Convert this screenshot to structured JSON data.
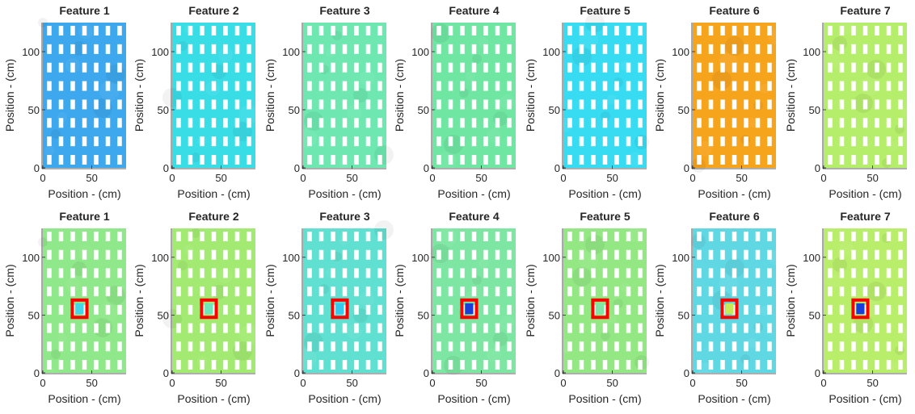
{
  "chart_data": [
    {
      "type": "heatmap",
      "row": "top",
      "title": "Feature 1",
      "xlabel": "Position - (cm)",
      "ylabel": "Position - (cm)",
      "x_ticks": [
        0,
        50
      ],
      "y_ticks": [
        0,
        50,
        100
      ],
      "xlim": [
        0,
        85
      ],
      "ylim": [
        0,
        125
      ],
      "base_color": "#3ea8ee",
      "highlight": null
    },
    {
      "type": "heatmap",
      "row": "top",
      "title": "Feature 2",
      "xlabel": "Position - (cm)",
      "ylabel": "Position - (cm)",
      "x_ticks": [
        0,
        50
      ],
      "y_ticks": [
        0,
        50,
        100
      ],
      "xlim": [
        0,
        85
      ],
      "ylim": [
        0,
        125
      ],
      "base_color": "#39dde6",
      "highlight": null
    },
    {
      "type": "heatmap",
      "row": "top",
      "title": "Feature 3",
      "xlabel": "Position - (cm)",
      "ylabel": "Position - (cm)",
      "x_ticks": [
        0,
        50
      ],
      "y_ticks": [
        0,
        50,
        100
      ],
      "xlim": [
        0,
        85
      ],
      "ylim": [
        0,
        125
      ],
      "base_color": "#6ee8b0",
      "highlight": null
    },
    {
      "type": "heatmap",
      "row": "top",
      "title": "Feature 4",
      "xlabel": "Position - (cm)",
      "ylabel": "Position - (cm)",
      "x_ticks": [
        0,
        50
      ],
      "y_ticks": [
        0,
        50,
        100
      ],
      "xlim": [
        0,
        85
      ],
      "ylim": [
        0,
        125
      ],
      "base_color": "#6fe6a2",
      "highlight": null
    },
    {
      "type": "heatmap",
      "row": "top",
      "title": "Feature 5",
      "xlabel": "Position - (cm)",
      "ylabel": "Position - (cm)",
      "x_ticks": [
        0,
        50
      ],
      "y_ticks": [
        0,
        50,
        100
      ],
      "xlim": [
        0,
        85
      ],
      "ylim": [
        0,
        125
      ],
      "base_color": "#37dcf2",
      "highlight": null
    },
    {
      "type": "heatmap",
      "row": "top",
      "title": "Feature 6",
      "xlabel": "Position - (cm)",
      "ylabel": "Position - (cm)",
      "x_ticks": [
        0,
        50
      ],
      "y_ticks": [
        0,
        50,
        100
      ],
      "xlim": [
        0,
        85
      ],
      "ylim": [
        0,
        125
      ],
      "base_color": "#f7a41d",
      "highlight": null
    },
    {
      "type": "heatmap",
      "row": "top",
      "title": "Feature 7",
      "xlabel": "Position - (cm)",
      "ylabel": "Position - (cm)",
      "x_ticks": [
        0,
        50
      ],
      "y_ticks": [
        0,
        50,
        100
      ],
      "xlim": [
        0,
        85
      ],
      "ylim": [
        0,
        125
      ],
      "base_color": "#b5ee6a",
      "highlight": null
    },
    {
      "type": "heatmap",
      "row": "bottom",
      "title": "Feature 1",
      "xlabel": "Position - (cm)",
      "ylabel": "Position - (cm)",
      "x_ticks": [
        0,
        50
      ],
      "y_ticks": [
        0,
        50,
        100
      ],
      "xlim": [
        0,
        85
      ],
      "ylim": [
        0,
        125
      ],
      "base_color": "#8fe889",
      "highlight": {
        "x": [
          30,
          45
        ],
        "y": [
          48,
          63
        ],
        "color": "#ff0000",
        "inner": "#44d6e8"
      }
    },
    {
      "type": "heatmap",
      "row": "bottom",
      "title": "Feature 2",
      "xlabel": "Position - (cm)",
      "ylabel": "Position - (cm)",
      "x_ticks": [
        0,
        50
      ],
      "y_ticks": [
        0,
        50,
        100
      ],
      "xlim": [
        0,
        85
      ],
      "ylim": [
        0,
        125
      ],
      "base_color": "#a3ea72",
      "highlight": {
        "x": [
          30,
          45
        ],
        "y": [
          48,
          63
        ],
        "color": "#ff0000",
        "inner": "#6fe6b9"
      }
    },
    {
      "type": "heatmap",
      "row": "bottom",
      "title": "Feature 3",
      "xlabel": "Position - (cm)",
      "ylabel": "Position - (cm)",
      "x_ticks": [
        0,
        50
      ],
      "y_ticks": [
        0,
        50,
        100
      ],
      "xlim": [
        0,
        85
      ],
      "ylim": [
        0,
        125
      ],
      "base_color": "#5fe0d0",
      "highlight": {
        "x": [
          30,
          45
        ],
        "y": [
          48,
          63
        ],
        "color": "#ff0000",
        "inner": "#35c9ef"
      }
    },
    {
      "type": "heatmap",
      "row": "bottom",
      "title": "Feature 4",
      "xlabel": "Position - (cm)",
      "ylabel": "Position - (cm)",
      "x_ticks": [
        0,
        50
      ],
      "y_ticks": [
        0,
        50,
        100
      ],
      "xlim": [
        0,
        85
      ],
      "ylim": [
        0,
        125
      ],
      "base_color": "#7de6a2",
      "highlight": {
        "x": [
          30,
          45
        ],
        "y": [
          48,
          63
        ],
        "color": "#ff0000",
        "inner": "#1a3fd9"
      }
    },
    {
      "type": "heatmap",
      "row": "bottom",
      "title": "Feature 5",
      "xlabel": "Position - (cm)",
      "ylabel": "Position - (cm)",
      "x_ticks": [
        0,
        50
      ],
      "y_ticks": [
        0,
        50,
        100
      ],
      "xlim": [
        0,
        85
      ],
      "ylim": [
        0,
        125
      ],
      "base_color": "#93e884",
      "highlight": {
        "x": [
          30,
          45
        ],
        "y": [
          48,
          63
        ],
        "color": "#ff0000",
        "inner": "#7fe6a8"
      }
    },
    {
      "type": "heatmap",
      "row": "bottom",
      "title": "Feature 6",
      "xlabel": "Position - (cm)",
      "ylabel": "Position - (cm)",
      "x_ticks": [
        0,
        50
      ],
      "y_ticks": [
        0,
        50,
        100
      ],
      "xlim": [
        0,
        85
      ],
      "ylim": [
        0,
        125
      ],
      "base_color": "#5fd8e4",
      "highlight": {
        "x": [
          30,
          45
        ],
        "y": [
          48,
          63
        ],
        "color": "#ff0000",
        "inner": "#c8ea57"
      }
    },
    {
      "type": "heatmap",
      "row": "bottom",
      "title": "Feature 7",
      "xlabel": "Position - (cm)",
      "ylabel": "Position - (cm)",
      "x_ticks": [
        0,
        50
      ],
      "y_ticks": [
        0,
        50,
        100
      ],
      "xlim": [
        0,
        85
      ],
      "ylim": [
        0,
        125
      ],
      "base_color": "#b8ee6a",
      "highlight": {
        "x": [
          30,
          45
        ],
        "y": [
          48,
          63
        ],
        "color": "#ff0000",
        "inner": "#1a3fd9"
      }
    }
  ]
}
